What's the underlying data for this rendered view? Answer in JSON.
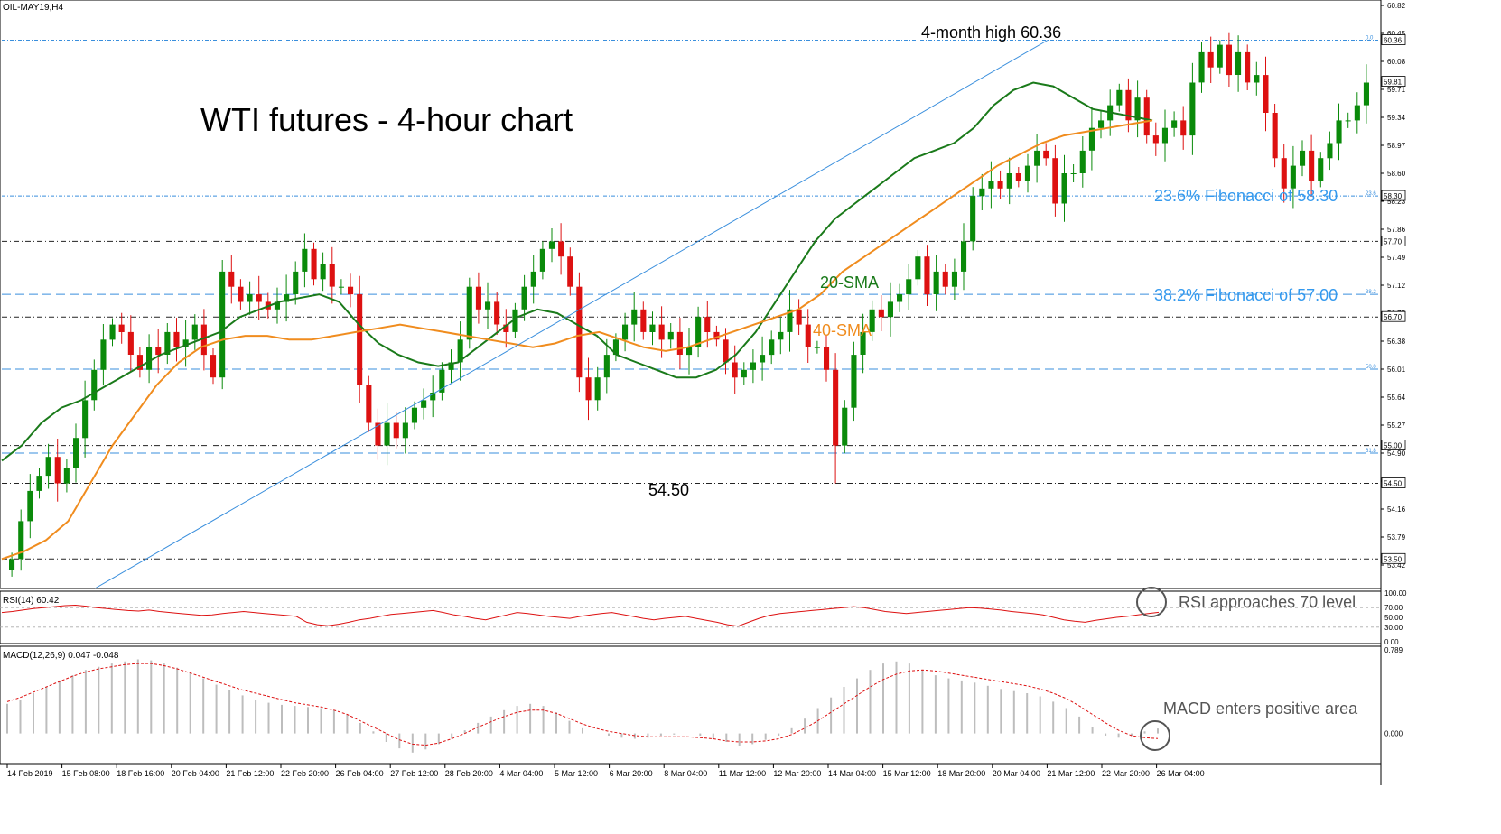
{
  "chart_data": [
    {
      "type": "candlestick",
      "symbol_label": "OIL-MAY19,H4",
      "title": "WTI futures - 4-hour chart",
      "y_ticks": [
        60.82,
        60.45,
        60.08,
        59.71,
        59.34,
        58.97,
        58.6,
        58.23,
        57.86,
        57.49,
        57.12,
        56.75,
        56.38,
        56.01,
        55.64,
        55.27,
        54.9,
        54.53,
        54.16,
        53.79,
        53.42
      ],
      "ylim": [
        53.42,
        60.82
      ],
      "x_ticks": [
        "14 Feb 2019",
        "15 Feb 08:00",
        "18 Feb 16:00",
        "20 Feb 04:00",
        "21 Feb 12:00",
        "22 Feb 20:00",
        "26 Feb 04:00",
        "27 Feb 12:00",
        "28 Feb 20:00",
        "4 Mar 04:00",
        "5 Mar 12:00",
        "6 Mar 20:00",
        "8 Mar 04:00",
        "11 Mar 12:00",
        "12 Mar 20:00",
        "14 Mar 04:00",
        "15 Mar 12:00",
        "18 Mar 20:00",
        "20 Mar 04:00",
        "21 Mar 12:00",
        "22 Mar 20:00",
        "26 Mar 04:00"
      ],
      "price_labels": [
        "60.36",
        "59.81",
        "58.30",
        "57.70",
        "56.70",
        "55.00",
        "54.50",
        "53.50"
      ],
      "fib_labels": [
        "0.0",
        "23.6",
        "38.2",
        "50.0",
        "61.8"
      ],
      "last_price": 59.81,
      "closes": [
        53.5,
        54.0,
        54.4,
        54.6,
        54.85,
        54.5,
        54.7,
        55.1,
        55.6,
        56.0,
        56.4,
        56.6,
        56.5,
        56.2,
        56.0,
        56.3,
        56.2,
        56.5,
        56.3,
        56.4,
        56.6,
        56.2,
        55.9,
        57.3,
        57.1,
        56.9,
        57.0,
        56.9,
        56.8,
        56.9,
        57.0,
        57.3,
        57.6,
        57.2,
        57.4,
        57.1,
        57.1,
        57.0,
        55.8,
        55.3,
        55.0,
        55.3,
        55.1,
        55.3,
        55.5,
        55.6,
        55.7,
        56.0,
        56.1,
        56.4,
        57.1,
        56.8,
        56.9,
        56.6,
        56.5,
        56.8,
        57.1,
        57.3,
        57.6,
        57.7,
        57.5,
        57.1,
        55.9,
        55.6,
        55.9,
        56.2,
        56.4,
        56.6,
        56.8,
        56.5,
        56.6,
        56.4,
        56.5,
        56.2,
        56.3,
        56.7,
        56.5,
        56.4,
        56.1,
        55.9,
        56.0,
        56.1,
        56.2,
        56.4,
        56.5,
        56.8,
        56.6,
        56.3,
        56.3,
        56.0,
        55.0,
        55.5,
        56.2,
        56.5,
        56.8,
        56.7,
        56.9,
        57.0,
        57.2,
        57.5,
        57.0,
        57.3,
        57.1,
        57.3,
        57.7,
        58.3,
        58.4,
        58.5,
        58.4,
        58.6,
        58.5,
        58.7,
        58.9,
        58.8,
        58.2,
        58.6,
        58.6,
        58.9,
        59.2,
        59.3,
        59.5,
        59.7,
        59.3,
        59.6,
        59.1,
        59.0,
        59.2,
        59.3,
        59.1,
        59.8,
        60.2,
        60.0,
        60.3,
        59.9,
        60.2,
        59.8,
        59.9,
        59.4,
        58.8,
        58.4,
        58.7,
        58.9,
        58.5,
        58.8,
        59.0,
        59.3,
        59.3,
        59.5,
        59.8
      ],
      "series": [
        {
          "name": "20-SMA",
          "values": [
            54.8,
            55.0,
            55.3,
            55.5,
            55.6,
            55.75,
            55.9,
            56.05,
            56.2,
            56.3,
            56.4,
            56.5,
            56.7,
            56.8,
            56.9,
            56.95,
            57.0,
            56.9,
            56.6,
            56.35,
            56.2,
            56.1,
            56.05,
            56.1,
            56.3,
            56.5,
            56.7,
            56.8,
            56.75,
            56.6,
            56.45,
            56.2,
            56.1,
            56.0,
            55.9,
            55.9,
            56.0,
            56.2,
            56.5,
            56.9,
            57.3,
            57.7,
            58.0,
            58.2,
            58.4,
            58.6,
            58.8,
            58.9,
            59.0,
            59.2,
            59.5,
            59.7,
            59.8,
            59.75,
            59.6,
            59.45,
            59.4,
            59.35,
            59.3
          ]
        },
        {
          "name": "40-SMA",
          "values": [
            53.5,
            53.6,
            53.75,
            54.0,
            54.5,
            55.0,
            55.4,
            55.8,
            56.1,
            56.3,
            56.4,
            56.45,
            56.45,
            56.4,
            56.4,
            56.45,
            56.5,
            56.55,
            56.6,
            56.55,
            56.5,
            56.45,
            56.4,
            56.35,
            56.3,
            56.35,
            56.45,
            56.5,
            56.4,
            56.3,
            56.25,
            56.3,
            56.4,
            56.5,
            56.6,
            56.7,
            56.8,
            57.0,
            57.3,
            57.5,
            57.7,
            57.9,
            58.1,
            58.3,
            58.5,
            58.7,
            58.85,
            59.0,
            59.1,
            59.15,
            59.2,
            59.25,
            59.3
          ]
        }
      ],
      "levels": [
        {
          "value": 60.36,
          "style": "fib",
          "label": "4-month high 60.36"
        },
        {
          "value": 58.3,
          "style": "fib",
          "label": "23.6% Fibonacci of 58.30"
        },
        {
          "value": 57.7,
          "style": "support",
          "label": ""
        },
        {
          "value": 57.0,
          "style": "fib-dash",
          "label": "38.2% Fibonacci of 57.00"
        },
        {
          "value": 56.7,
          "style": "support",
          "label": ""
        },
        {
          "value": 56.01,
          "style": "fib-dash",
          "label": ""
        },
        {
          "value": 55.0,
          "style": "support",
          "label": ""
        },
        {
          "value": 54.9,
          "style": "fib-dash",
          "label": ""
        },
        {
          "value": 54.5,
          "style": "support",
          "label": ""
        },
        {
          "value": 53.5,
          "style": "support",
          "label": ""
        }
      ],
      "annotations": {
        "high": "4-month high 60.36",
        "fib236": "23.6% Fibonacci of 58.30",
        "fib382": "38.2% Fibonacci of 57.00",
        "low": "54.50",
        "sma20": "20-SMA",
        "sma40": "40-SMA"
      },
      "colors": {
        "bull": "#0a8a0a",
        "bear": "#dd1111",
        "sma20": "#1a7a1a",
        "sma40": "#f08c1e",
        "trendline": "#3a8fdd",
        "fib_text": "#3399ee"
      }
    },
    {
      "type": "line",
      "label": "RSI(14) 60.42",
      "y_ticks": [
        100.0,
        70.0,
        50.0,
        30.0,
        0.0
      ],
      "ylim": [
        0,
        100
      ],
      "values": [
        60,
        62,
        65,
        68,
        70,
        72,
        74,
        75,
        73,
        70,
        68,
        66,
        64,
        63,
        65,
        62,
        60,
        58,
        56,
        54,
        55,
        58,
        60,
        62,
        60,
        58,
        56,
        54,
        52,
        40,
        35,
        33,
        36,
        40,
        45,
        48,
        52,
        56,
        58,
        60,
        62,
        64,
        60,
        55,
        52,
        48,
        45,
        50,
        55,
        60,
        58,
        55,
        52,
        50,
        48,
        52,
        55,
        58,
        60,
        56,
        52,
        48,
        45,
        48,
        50,
        52,
        48,
        44,
        40,
        35,
        32,
        40,
        48,
        54,
        58,
        60,
        62,
        64,
        66,
        68,
        70,
        72,
        70,
        66,
        62,
        60,
        58,
        60,
        62,
        64,
        66,
        68,
        70,
        69,
        67,
        65,
        62,
        60,
        58,
        55,
        50,
        45,
        42,
        40,
        44,
        47,
        50,
        52,
        55,
        58,
        60.42
      ],
      "annotation": "RSI approaches 70 level",
      "color": "#dd1111"
    },
    {
      "type": "bar",
      "label": "MACD(12,26,9) 0.047 -0.048",
      "y_ticks": [
        0.789,
        0.0
      ],
      "ylim": [
        -0.25,
        0.789
      ],
      "values": [
        0.28,
        0.32,
        0.38,
        0.44,
        0.5,
        0.55,
        0.6,
        0.63,
        0.66,
        0.68,
        0.7,
        0.69,
        0.66,
        0.62,
        0.57,
        0.52,
        0.46,
        0.41,
        0.36,
        0.32,
        0.29,
        0.27,
        0.26,
        0.25,
        0.24,
        0.22,
        0.18,
        0.1,
        0.02,
        -0.08,
        -0.14,
        -0.18,
        -0.15,
        -0.1,
        -0.05,
        0.03,
        0.1,
        0.16,
        0.22,
        0.26,
        0.28,
        0.26,
        0.2,
        0.12,
        0.05,
        0.0,
        -0.02,
        -0.04,
        -0.05,
        -0.04,
        -0.02,
        -0.01,
        0.0,
        -0.02,
        -0.05,
        -0.08,
        -0.12,
        -0.1,
        -0.06,
        -0.02,
        0.05,
        0.14,
        0.24,
        0.34,
        0.44,
        0.52,
        0.6,
        0.66,
        0.68,
        0.66,
        0.6,
        0.55,
        0.52,
        0.5,
        0.48,
        0.45,
        0.42,
        0.4,
        0.38,
        0.35,
        0.3,
        0.24,
        0.16,
        0.06,
        -0.02,
        -0.04,
        -0.02,
        0.02,
        0.047
      ],
      "signal": [
        0.3,
        0.34,
        0.39,
        0.44,
        0.49,
        0.54,
        0.58,
        0.61,
        0.63,
        0.65,
        0.66,
        0.66,
        0.64,
        0.61,
        0.57,
        0.53,
        0.49,
        0.45,
        0.41,
        0.38,
        0.35,
        0.32,
        0.29,
        0.27,
        0.25,
        0.22,
        0.18,
        0.12,
        0.06,
        0.0,
        -0.06,
        -0.1,
        -0.11,
        -0.09,
        -0.05,
        0.0,
        0.06,
        0.11,
        0.16,
        0.2,
        0.22,
        0.22,
        0.19,
        0.14,
        0.09,
        0.05,
        0.02,
        0.0,
        -0.02,
        -0.03,
        -0.03,
        -0.03,
        -0.03,
        -0.04,
        -0.05,
        -0.07,
        -0.08,
        -0.08,
        -0.07,
        -0.05,
        -0.01,
        0.05,
        0.12,
        0.2,
        0.28,
        0.36,
        0.44,
        0.51,
        0.56,
        0.59,
        0.6,
        0.59,
        0.57,
        0.55,
        0.53,
        0.51,
        0.49,
        0.47,
        0.45,
        0.42,
        0.38,
        0.33,
        0.26,
        0.18,
        0.1,
        0.03,
        -0.02,
        -0.04,
        -0.048
      ],
      "annotation": "MACD enters positive area",
      "colors": {
        "hist": "#bdbdbd",
        "signal": "#dd1111"
      }
    }
  ]
}
